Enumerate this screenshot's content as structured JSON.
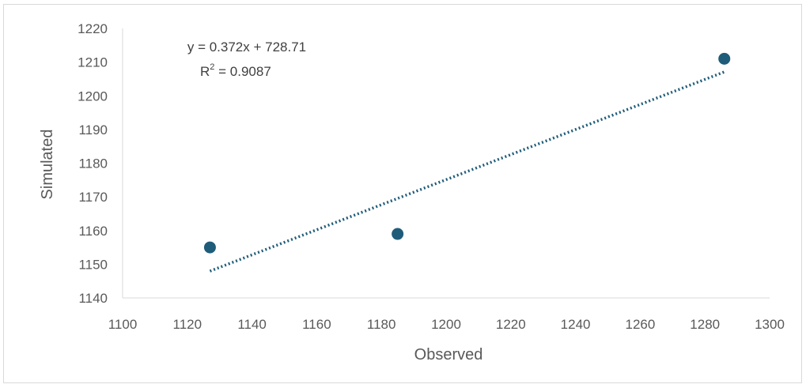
{
  "chart_data": {
    "type": "scatter",
    "xlabel": "Observed",
    "ylabel": "Simulated",
    "xlim": [
      1100,
      1300
    ],
    "ylim": [
      1140,
      1220
    ],
    "xticks": [
      "1100",
      "1120",
      "1140",
      "1160",
      "1180",
      "1200",
      "1220",
      "1240",
      "1260",
      "1280",
      "1300"
    ],
    "yticks": [
      "1140",
      "1150",
      "1160",
      "1170",
      "1180",
      "1190",
      "1200",
      "1210",
      "1220"
    ],
    "points": [
      {
        "x": 1127,
        "y": 1155
      },
      {
        "x": 1185,
        "y": 1159
      },
      {
        "x": 1286,
        "y": 1211
      }
    ],
    "trendline": {
      "type": "linear",
      "slope": 0.372,
      "intercept": 728.71,
      "style": "dotted"
    },
    "equation": "y = 0.372x + 728.71",
    "r2_label": "R",
    "r2_sup": "2",
    "r2_value": " = 0.9087",
    "grid": false,
    "legend": "none",
    "colors": {
      "marker": "#1f5c7a",
      "trendline": "#1f5c7a",
      "axis": "#d9d9d9",
      "text": "#595959"
    }
  }
}
